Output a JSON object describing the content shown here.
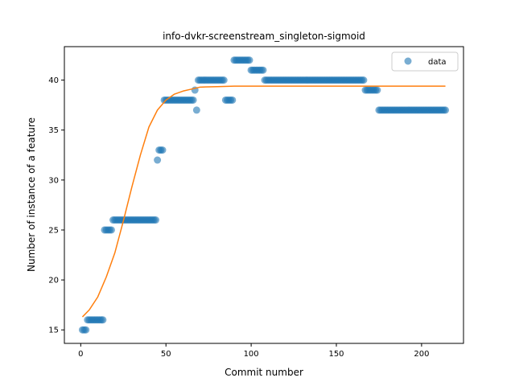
{
  "chart_data": {
    "type": "scatter",
    "title": "info-dvkr-screenstream_singleton-sigmoid",
    "xlabel": "Commit number",
    "ylabel": "Number of instance of a feature",
    "xlim": [
      -9.6,
      224.6
    ],
    "ylim": [
      13.65,
      43.35
    ],
    "xticks": [
      0,
      50,
      100,
      150,
      200
    ],
    "yticks": [
      15,
      20,
      25,
      30,
      35,
      40
    ],
    "grid": false,
    "legend": {
      "position": "top-right",
      "entries": [
        "data"
      ]
    },
    "series": [
      {
        "name": "data",
        "kind": "scatter",
        "color": "#1f77b4",
        "points": [
          [
            1,
            15
          ],
          [
            2,
            15
          ],
          [
            3,
            15
          ],
          [
            4,
            16
          ],
          [
            5,
            16
          ],
          [
            6,
            16
          ],
          [
            7,
            16
          ],
          [
            8,
            16
          ],
          [
            9,
            16
          ],
          [
            10,
            16
          ],
          [
            11,
            16
          ],
          [
            12,
            16
          ],
          [
            13,
            16
          ],
          [
            14,
            25
          ],
          [
            15,
            25
          ],
          [
            16,
            25
          ],
          [
            17,
            25
          ],
          [
            18,
            25
          ],
          [
            19,
            26
          ],
          [
            20,
            26
          ],
          [
            21,
            26
          ],
          [
            22,
            26
          ],
          [
            23,
            26
          ],
          [
            24,
            26
          ],
          [
            25,
            26
          ],
          [
            26,
            26
          ],
          [
            27,
            26
          ],
          [
            28,
            26
          ],
          [
            29,
            26
          ],
          [
            30,
            26
          ],
          [
            31,
            26
          ],
          [
            32,
            26
          ],
          [
            33,
            26
          ],
          [
            34,
            26
          ],
          [
            35,
            26
          ],
          [
            36,
            26
          ],
          [
            37,
            26
          ],
          [
            38,
            26
          ],
          [
            39,
            26
          ],
          [
            40,
            26
          ],
          [
            41,
            26
          ],
          [
            42,
            26
          ],
          [
            43,
            26
          ],
          [
            44,
            26
          ],
          [
            45,
            32
          ],
          [
            46,
            33
          ],
          [
            47,
            33
          ],
          [
            48,
            33
          ],
          [
            49,
            38
          ],
          [
            50,
            38
          ],
          [
            51,
            38
          ],
          [
            52,
            38
          ],
          [
            53,
            38
          ],
          [
            54,
            38
          ],
          [
            55,
            38
          ],
          [
            56,
            38
          ],
          [
            57,
            38
          ],
          [
            58,
            38
          ],
          [
            59,
            38
          ],
          [
            60,
            38
          ],
          [
            61,
            38
          ],
          [
            62,
            38
          ],
          [
            63,
            38
          ],
          [
            64,
            38
          ],
          [
            65,
            38
          ],
          [
            66,
            38
          ],
          [
            67,
            39
          ],
          [
            68,
            37
          ],
          [
            69,
            40
          ],
          [
            70,
            40
          ],
          [
            71,
            40
          ],
          [
            72,
            40
          ],
          [
            73,
            40
          ],
          [
            74,
            40
          ],
          [
            75,
            40
          ],
          [
            76,
            40
          ],
          [
            77,
            40
          ],
          [
            78,
            40
          ],
          [
            79,
            40
          ],
          [
            80,
            40
          ],
          [
            81,
            40
          ],
          [
            82,
            40
          ],
          [
            83,
            40
          ],
          [
            84,
            40
          ],
          [
            85,
            38
          ],
          [
            86,
            38
          ],
          [
            87,
            38
          ],
          [
            88,
            38
          ],
          [
            89,
            38
          ],
          [
            90,
            42
          ],
          [
            91,
            42
          ],
          [
            92,
            42
          ],
          [
            93,
            42
          ],
          [
            94,
            42
          ],
          [
            95,
            42
          ],
          [
            96,
            42
          ],
          [
            97,
            42
          ],
          [
            98,
            42
          ],
          [
            99,
            42
          ],
          [
            100,
            41
          ],
          [
            101,
            41
          ],
          [
            102,
            41
          ],
          [
            103,
            41
          ],
          [
            104,
            41
          ],
          [
            105,
            41
          ],
          [
            106,
            41
          ],
          [
            107,
            41
          ],
          [
            108,
            40
          ],
          [
            109,
            40
          ],
          [
            110,
            40
          ],
          [
            111,
            40
          ],
          [
            112,
            40
          ],
          [
            113,
            40
          ],
          [
            114,
            40
          ],
          [
            115,
            40
          ],
          [
            116,
            40
          ],
          [
            117,
            40
          ],
          [
            118,
            40
          ],
          [
            119,
            40
          ],
          [
            120,
            40
          ],
          [
            121,
            40
          ],
          [
            122,
            40
          ],
          [
            123,
            40
          ],
          [
            124,
            40
          ],
          [
            125,
            40
          ],
          [
            126,
            40
          ],
          [
            127,
            40
          ],
          [
            128,
            40
          ],
          [
            129,
            40
          ],
          [
            130,
            40
          ],
          [
            131,
            40
          ],
          [
            132,
            40
          ],
          [
            133,
            40
          ],
          [
            134,
            40
          ],
          [
            135,
            40
          ],
          [
            136,
            40
          ],
          [
            137,
            40
          ],
          [
            138,
            40
          ],
          [
            139,
            40
          ],
          [
            140,
            40
          ],
          [
            141,
            40
          ],
          [
            142,
            40
          ],
          [
            143,
            40
          ],
          [
            144,
            40
          ],
          [
            145,
            40
          ],
          [
            146,
            40
          ],
          [
            147,
            40
          ],
          [
            148,
            40
          ],
          [
            149,
            40
          ],
          [
            150,
            40
          ],
          [
            151,
            40
          ],
          [
            152,
            40
          ],
          [
            153,
            40
          ],
          [
            154,
            40
          ],
          [
            155,
            40
          ],
          [
            156,
            40
          ],
          [
            157,
            40
          ],
          [
            158,
            40
          ],
          [
            159,
            40
          ],
          [
            160,
            40
          ],
          [
            161,
            40
          ],
          [
            162,
            40
          ],
          [
            163,
            40
          ],
          [
            164,
            40
          ],
          [
            165,
            40
          ],
          [
            166,
            40
          ],
          [
            167,
            39
          ],
          [
            168,
            39
          ],
          [
            169,
            39
          ],
          [
            170,
            39
          ],
          [
            171,
            39
          ],
          [
            172,
            39
          ],
          [
            173,
            39
          ],
          [
            174,
            39
          ],
          [
            175,
            37
          ],
          [
            176,
            37
          ],
          [
            177,
            37
          ],
          [
            178,
            37
          ],
          [
            179,
            37
          ],
          [
            180,
            37
          ],
          [
            181,
            37
          ],
          [
            182,
            37
          ],
          [
            183,
            37
          ],
          [
            184,
            37
          ],
          [
            185,
            37
          ],
          [
            186,
            37
          ],
          [
            187,
            37
          ],
          [
            188,
            37
          ],
          [
            189,
            37
          ],
          [
            190,
            37
          ],
          [
            191,
            37
          ],
          [
            192,
            37
          ],
          [
            193,
            37
          ],
          [
            194,
            37
          ],
          [
            195,
            37
          ],
          [
            196,
            37
          ],
          [
            197,
            37
          ],
          [
            198,
            37
          ],
          [
            199,
            37
          ],
          [
            200,
            37
          ],
          [
            201,
            37
          ],
          [
            202,
            37
          ],
          [
            203,
            37
          ],
          [
            204,
            37
          ],
          [
            205,
            37
          ],
          [
            206,
            37
          ],
          [
            207,
            37
          ],
          [
            208,
            37
          ],
          [
            209,
            37
          ],
          [
            210,
            37
          ],
          [
            211,
            37
          ],
          [
            212,
            37
          ],
          [
            213,
            37
          ],
          [
            214,
            37
          ]
        ]
      },
      {
        "kind": "line",
        "color": "#ff7f0e",
        "points": [
          [
            1,
            16.3
          ],
          [
            5,
            17.0
          ],
          [
            10,
            18.3
          ],
          [
            15,
            20.3
          ],
          [
            20,
            22.7
          ],
          [
            25,
            25.9
          ],
          [
            30,
            29.3
          ],
          [
            35,
            32.5
          ],
          [
            40,
            35.3
          ],
          [
            45,
            37.0
          ],
          [
            50,
            38.0
          ],
          [
            55,
            38.6
          ],
          [
            60,
            38.9
          ],
          [
            65,
            39.1
          ],
          [
            70,
            39.3
          ],
          [
            80,
            39.35
          ],
          [
            90,
            39.4
          ],
          [
            100,
            39.4
          ],
          [
            150,
            39.4
          ],
          [
            200,
            39.4
          ],
          [
            214,
            39.4
          ]
        ]
      }
    ]
  }
}
